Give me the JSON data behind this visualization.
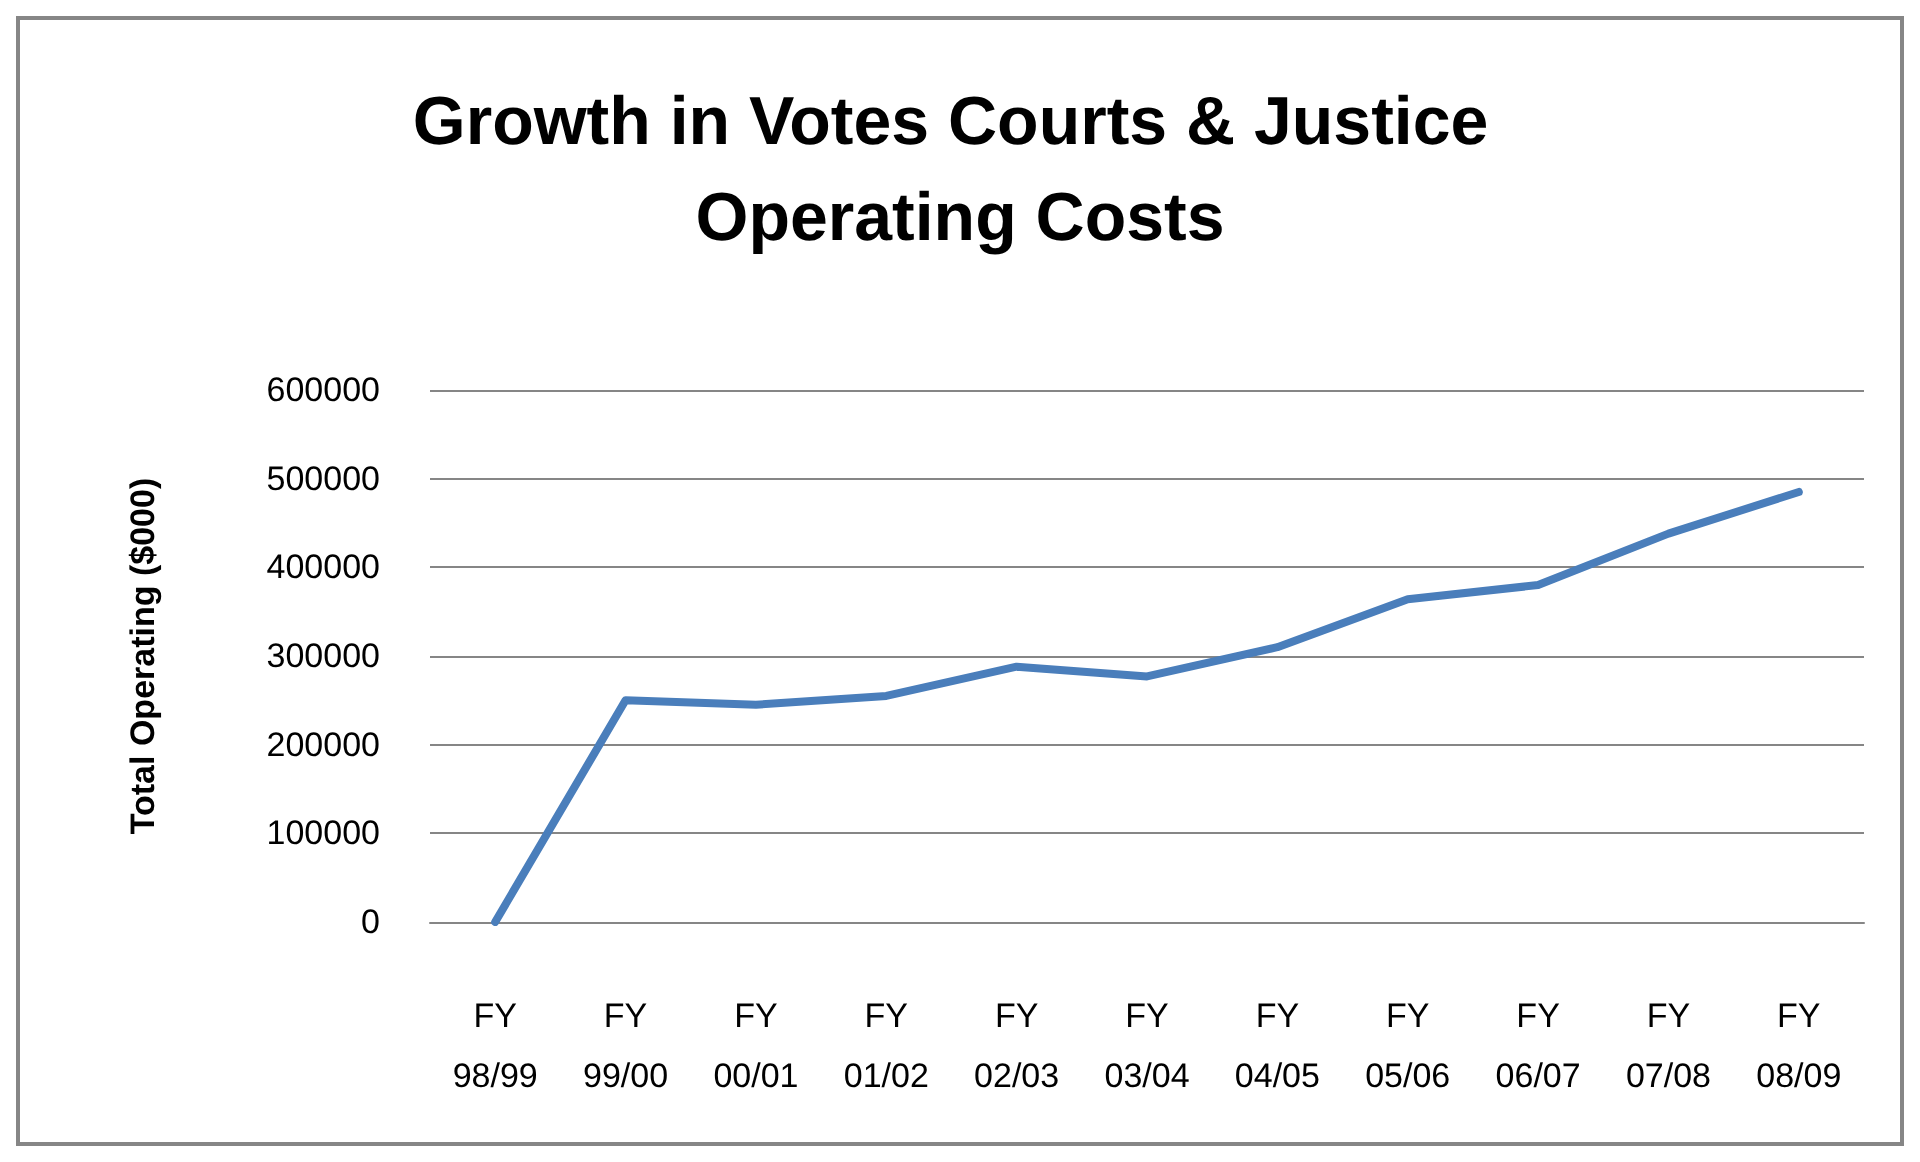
{
  "chart_data": {
    "type": "line",
    "title": "Growth in Votes Courts & Justice Operating Costs",
    "ylabel": "Total Operating ($000)",
    "categories": [
      "FY 98/99",
      "FY 99/00",
      "FY 00/01",
      "FY 01/02",
      "FY 02/03",
      "FY 03/04",
      "FY 04/05",
      "FY 05/06",
      "FY 06/07",
      "FY 07/08",
      "FY 08/09"
    ],
    "series": [
      {
        "color": "#4a7ebb",
        "values": [
          0,
          250000,
          245000,
          255000,
          288000,
          277000,
          310000,
          364000,
          380000,
          438000,
          485000
        ]
      }
    ],
    "ylim": [
      0,
      600000
    ],
    "yticks": [
      0,
      100000,
      200000,
      300000,
      400000,
      500000,
      600000
    ],
    "grid": "y",
    "marker": "none",
    "line_style": "solid"
  }
}
